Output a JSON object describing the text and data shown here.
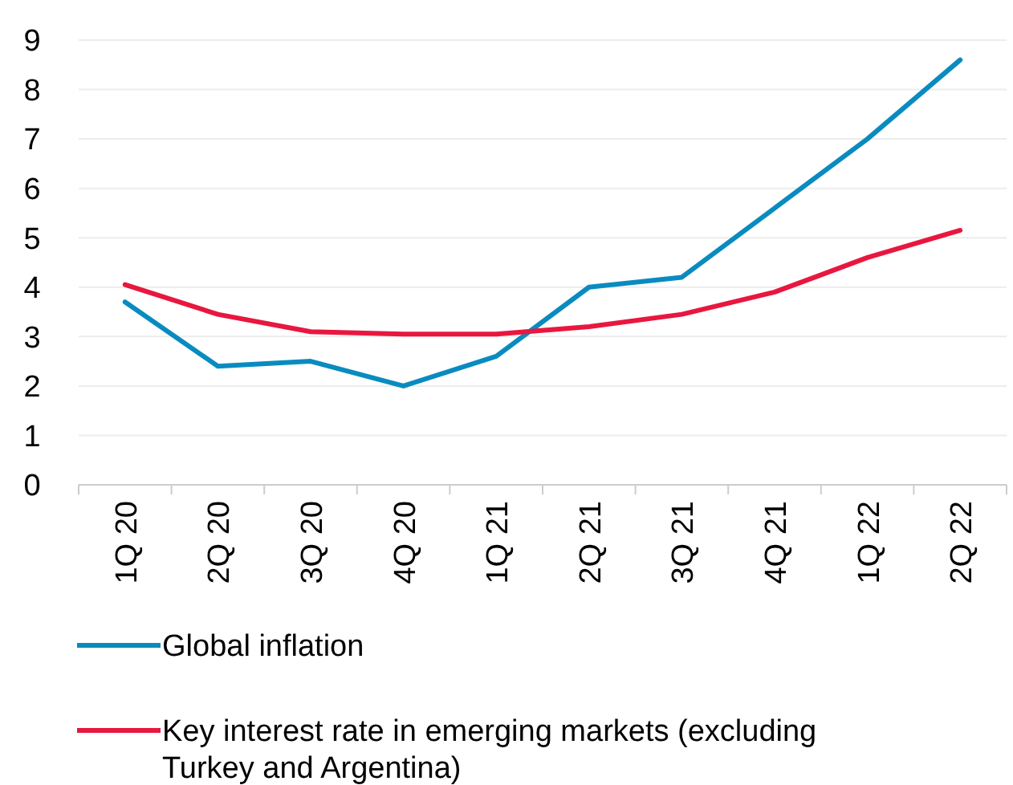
{
  "chart_data": {
    "type": "line",
    "categories": [
      "1Q 20",
      "2Q 20",
      "3Q 20",
      "4Q 20",
      "1Q 21",
      "2Q 21",
      "3Q 21",
      "4Q 21",
      "1Q 22",
      "2Q 22"
    ],
    "series": [
      {
        "name": "Global inflation",
        "color": "#0a8bbf",
        "values": [
          3.7,
          2.4,
          2.5,
          2.0,
          2.6,
          4.0,
          4.2,
          5.6,
          7.0,
          8.6
        ]
      },
      {
        "name": "Key interest rate in emerging markets (excluding Turkey and Argentina)",
        "color": "#e8173f",
        "values": [
          4.05,
          3.45,
          3.1,
          3.05,
          3.05,
          3.2,
          3.45,
          3.9,
          4.6,
          5.15
        ]
      }
    ],
    "ylim": [
      0,
      9
    ],
    "yticks": [
      0,
      1,
      2,
      3,
      4,
      5,
      6,
      7,
      8,
      9
    ],
    "grid": "y",
    "legend": "bottom",
    "marker": "none",
    "line_style": "solid"
  }
}
